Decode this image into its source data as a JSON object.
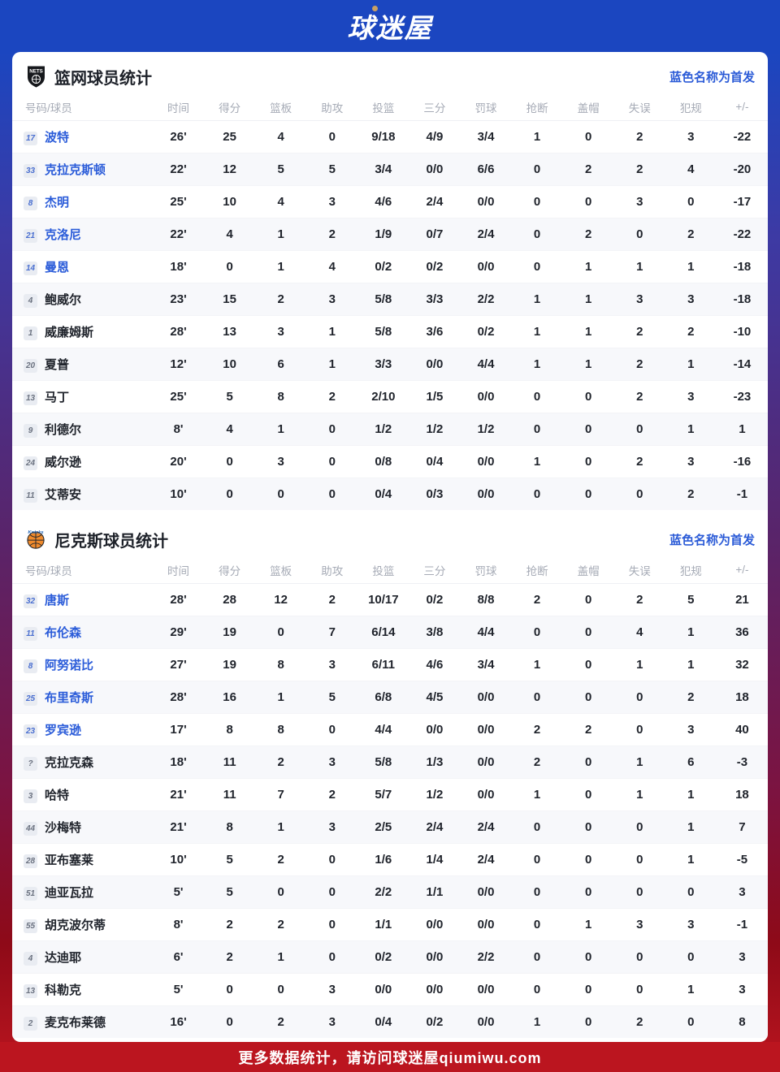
{
  "header": {
    "logo_text": "球迷屋"
  },
  "legend": "蓝色名称为首发",
  "columns": [
    "号码/球员",
    "时间",
    "得分",
    "篮板",
    "助攻",
    "投篮",
    "三分",
    "罚球",
    "抢断",
    "盖帽",
    "失误",
    "犯规",
    "+/-"
  ],
  "icons": {
    "nets": {
      "name": "nets-shield-icon",
      "label": "NETS"
    },
    "knicks": {
      "name": "knicks-basketball-icon",
      "label": "Knicks"
    }
  },
  "colors": {
    "banner_blue": "#1b46c0",
    "footer_red": "#bb151f",
    "accent_blue": "#2b5bd7",
    "starter_name_blue": "#2b5cd9",
    "gradient_mid_purple": "#59246a",
    "row_alt_gray": "#f7f8fb"
  },
  "teams": [
    {
      "title": "篮网球员统计",
      "players": [
        {
          "num": "17",
          "name": "波特",
          "starter": true,
          "stats": [
            "26'",
            "25",
            "4",
            "0",
            "9/18",
            "4/9",
            "3/4",
            "1",
            "0",
            "2",
            "3",
            "-22"
          ]
        },
        {
          "num": "33",
          "name": "克拉克斯顿",
          "starter": true,
          "stats": [
            "22'",
            "12",
            "5",
            "5",
            "3/4",
            "0/0",
            "6/6",
            "0",
            "2",
            "2",
            "4",
            "-20"
          ]
        },
        {
          "num": "8",
          "name": "杰明",
          "starter": true,
          "stats": [
            "25'",
            "10",
            "4",
            "3",
            "4/6",
            "2/4",
            "0/0",
            "0",
            "0",
            "3",
            "0",
            "-17"
          ]
        },
        {
          "num": "21",
          "name": "克洛尼",
          "starter": true,
          "stats": [
            "22'",
            "4",
            "1",
            "2",
            "1/9",
            "0/7",
            "2/4",
            "0",
            "2",
            "0",
            "2",
            "-22"
          ]
        },
        {
          "num": "14",
          "name": "曼恩",
          "starter": true,
          "stats": [
            "18'",
            "0",
            "1",
            "4",
            "0/2",
            "0/2",
            "0/0",
            "0",
            "1",
            "1",
            "1",
            "-18"
          ]
        },
        {
          "num": "4",
          "name": "鲍威尔",
          "starter": false,
          "stats": [
            "23'",
            "15",
            "2",
            "3",
            "5/8",
            "3/3",
            "2/2",
            "1",
            "1",
            "3",
            "3",
            "-18"
          ]
        },
        {
          "num": "1",
          "name": "威廉姆斯",
          "starter": false,
          "stats": [
            "28'",
            "13",
            "3",
            "1",
            "5/8",
            "3/6",
            "0/2",
            "1",
            "1",
            "2",
            "2",
            "-10"
          ]
        },
        {
          "num": "20",
          "name": "夏普",
          "starter": false,
          "stats": [
            "12'",
            "10",
            "6",
            "1",
            "3/3",
            "0/0",
            "4/4",
            "1",
            "1",
            "2",
            "1",
            "-14"
          ]
        },
        {
          "num": "13",
          "name": "马丁",
          "starter": false,
          "stats": [
            "25'",
            "5",
            "8",
            "2",
            "2/10",
            "1/5",
            "0/0",
            "0",
            "0",
            "2",
            "3",
            "-23"
          ]
        },
        {
          "num": "9",
          "name": "利德尔",
          "starter": false,
          "stats": [
            "8'",
            "4",
            "1",
            "0",
            "1/2",
            "1/2",
            "1/2",
            "0",
            "0",
            "0",
            "1",
            "1"
          ]
        },
        {
          "num": "24",
          "name": "威尔逊",
          "starter": false,
          "stats": [
            "20'",
            "0",
            "3",
            "0",
            "0/8",
            "0/4",
            "0/0",
            "1",
            "0",
            "2",
            "3",
            "-16"
          ]
        },
        {
          "num": "11",
          "name": "艾蒂安",
          "starter": false,
          "stats": [
            "10'",
            "0",
            "0",
            "0",
            "0/4",
            "0/3",
            "0/0",
            "0",
            "0",
            "0",
            "2",
            "-1"
          ]
        }
      ]
    },
    {
      "title": "尼克斯球员统计",
      "players": [
        {
          "num": "32",
          "name": "唐斯",
          "starter": true,
          "stats": [
            "28'",
            "28",
            "12",
            "2",
            "10/17",
            "0/2",
            "8/8",
            "2",
            "0",
            "2",
            "5",
            "21"
          ]
        },
        {
          "num": "11",
          "name": "布伦森",
          "starter": true,
          "stats": [
            "29'",
            "19",
            "0",
            "7",
            "6/14",
            "3/8",
            "4/4",
            "0",
            "0",
            "4",
            "1",
            "36"
          ]
        },
        {
          "num": "8",
          "name": "阿努诺比",
          "starter": true,
          "stats": [
            "27'",
            "19",
            "8",
            "3",
            "6/11",
            "4/6",
            "3/4",
            "1",
            "0",
            "1",
            "1",
            "32"
          ]
        },
        {
          "num": "25",
          "name": "布里奇斯",
          "starter": true,
          "stats": [
            "28'",
            "16",
            "1",
            "5",
            "6/8",
            "4/5",
            "0/0",
            "0",
            "0",
            "0",
            "2",
            "18"
          ]
        },
        {
          "num": "23",
          "name": "罗宾逊",
          "starter": true,
          "stats": [
            "17'",
            "8",
            "8",
            "0",
            "4/4",
            "0/0",
            "0/0",
            "2",
            "2",
            "0",
            "3",
            "40"
          ]
        },
        {
          "num": "?",
          "name": "克拉克森",
          "starter": false,
          "stats": [
            "18'",
            "11",
            "2",
            "3",
            "5/8",
            "1/3",
            "0/0",
            "2",
            "0",
            "1",
            "6",
            "-3"
          ]
        },
        {
          "num": "3",
          "name": "哈特",
          "starter": false,
          "stats": [
            "21'",
            "11",
            "7",
            "2",
            "5/7",
            "1/2",
            "0/0",
            "1",
            "0",
            "1",
            "1",
            "18"
          ]
        },
        {
          "num": "44",
          "name": "沙梅特",
          "starter": false,
          "stats": [
            "21'",
            "8",
            "1",
            "3",
            "2/5",
            "2/4",
            "2/4",
            "0",
            "0",
            "0",
            "1",
            "7"
          ]
        },
        {
          "num": "28",
          "name": "亚布塞莱",
          "starter": false,
          "stats": [
            "10'",
            "5",
            "2",
            "0",
            "1/6",
            "1/4",
            "2/4",
            "0",
            "0",
            "0",
            "1",
            "-5"
          ]
        },
        {
          "num": "51",
          "name": "迪亚瓦拉",
          "starter": false,
          "stats": [
            "5'",
            "5",
            "0",
            "0",
            "2/2",
            "1/1",
            "0/0",
            "0",
            "0",
            "0",
            "0",
            "3"
          ]
        },
        {
          "num": "55",
          "name": "胡克波尔蒂",
          "starter": false,
          "stats": [
            "8'",
            "2",
            "2",
            "0",
            "1/1",
            "0/0",
            "0/0",
            "0",
            "1",
            "3",
            "3",
            "-1"
          ]
        },
        {
          "num": "4",
          "name": "达迪耶",
          "starter": false,
          "stats": [
            "6'",
            "2",
            "1",
            "0",
            "0/2",
            "0/0",
            "2/2",
            "0",
            "0",
            "0",
            "0",
            "3"
          ]
        },
        {
          "num": "13",
          "name": "科勒克",
          "starter": false,
          "stats": [
            "5'",
            "0",
            "0",
            "3",
            "0/0",
            "0/0",
            "0/0",
            "0",
            "0",
            "0",
            "1",
            "3"
          ]
        },
        {
          "num": "2",
          "name": "麦克布莱德",
          "starter": false,
          "stats": [
            "16'",
            "0",
            "2",
            "3",
            "0/4",
            "0/2",
            "0/0",
            "1",
            "0",
            "2",
            "0",
            "8"
          ]
        }
      ]
    }
  ],
  "footer": {
    "text": "更多数据统计，请访问球迷屋qiumiwu.com"
  }
}
